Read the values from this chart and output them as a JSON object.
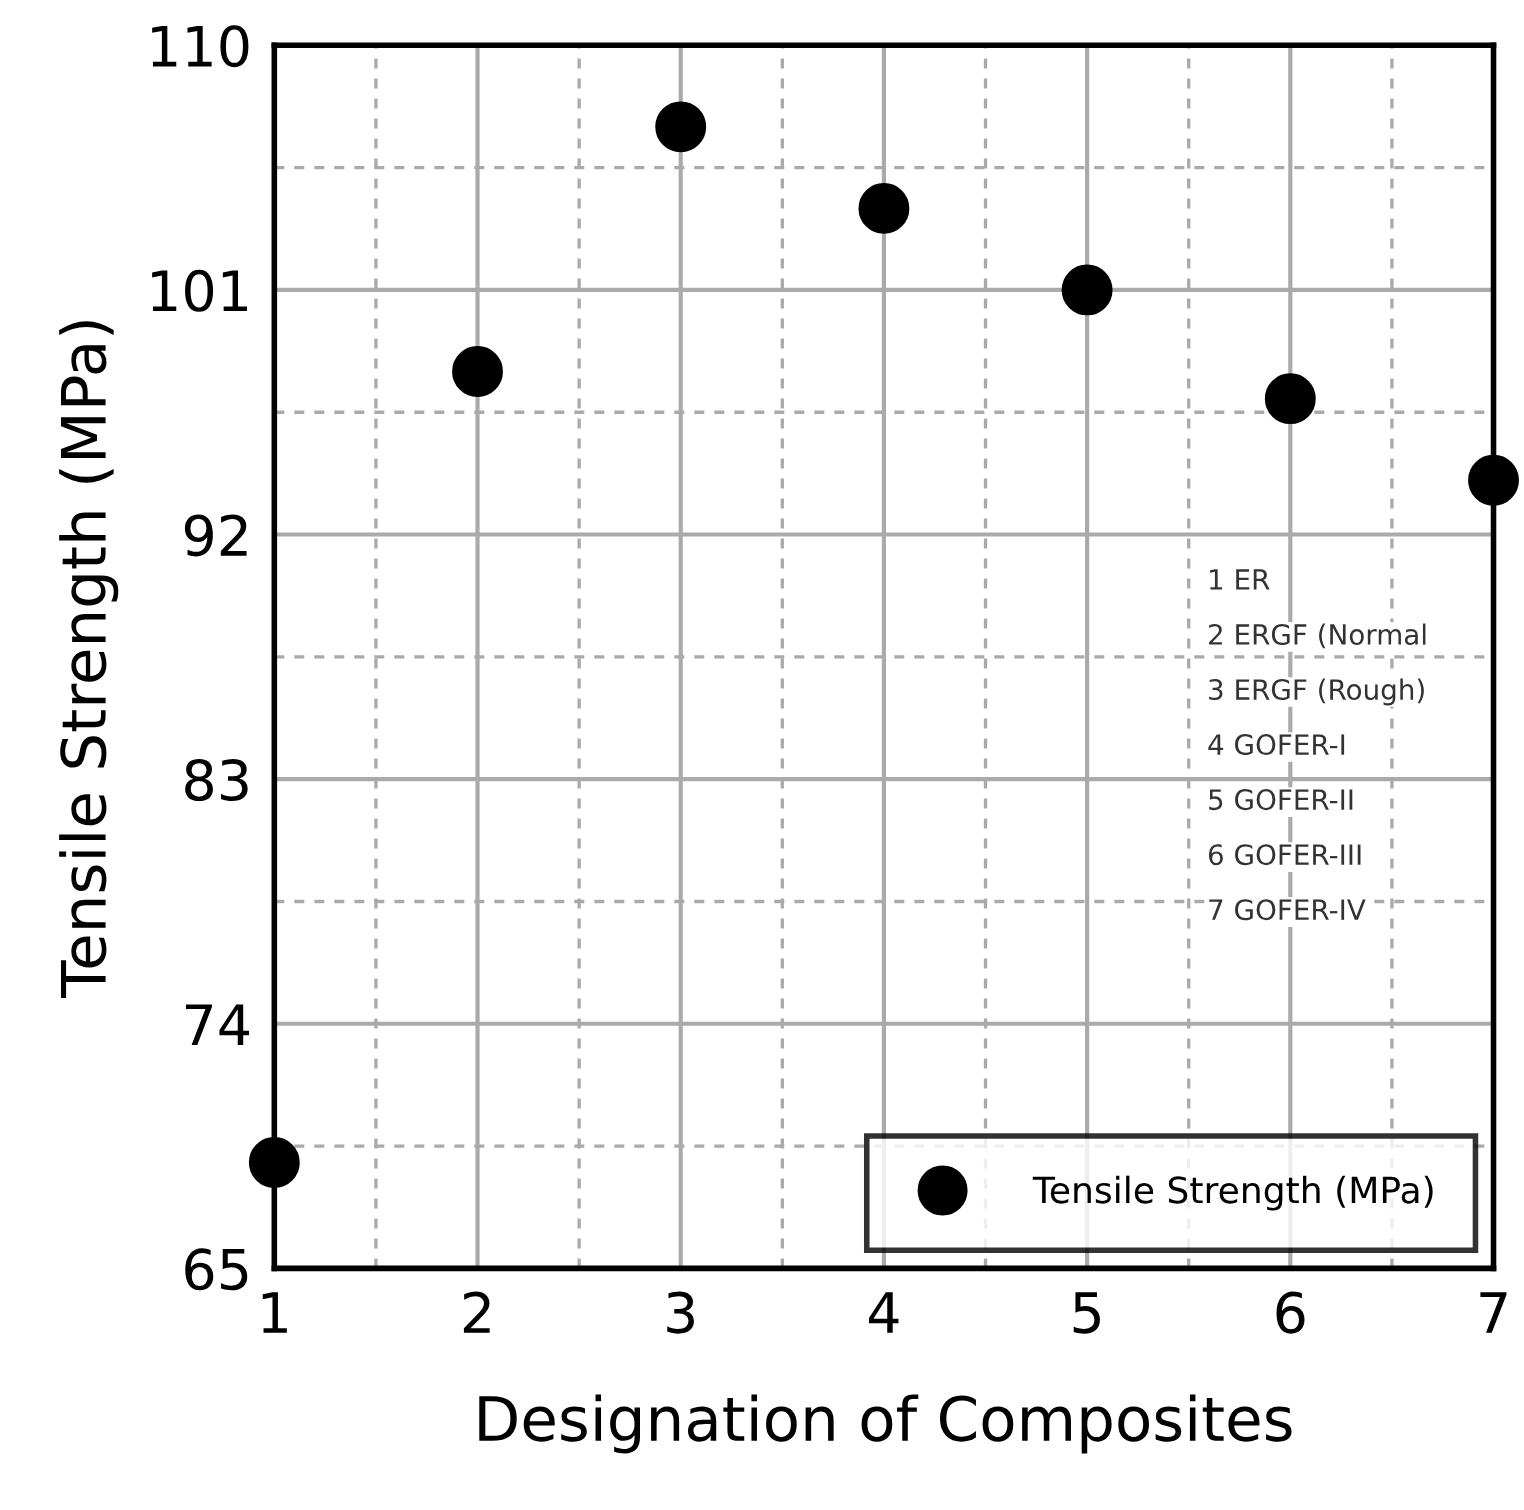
{
  "chart_data": {
    "type": "scatter",
    "xlabel": "Designation of Composites",
    "ylabel": "Tensile Strength (MPa)",
    "x": [
      1,
      2,
      3,
      4,
      5,
      6,
      7
    ],
    "series": [
      {
        "name": "Tensile Strength (MPa)",
        "color": "#000000",
        "values": [
          68.9,
          98.0,
          107.0,
          104.0,
          101.0,
          97.0,
          94.0
        ]
      }
    ],
    "xlim": [
      1,
      7
    ],
    "xticks": [
      1,
      2,
      3,
      4,
      5,
      6,
      7
    ],
    "ylim": [
      65,
      110
    ],
    "yticks": [
      65,
      74,
      83,
      92,
      101,
      110
    ],
    "grid": true,
    "legend": "bottom right",
    "marker": "circle",
    "annotations": [
      "1 ER",
      "2 ERGF (Normal",
      "3 ERGF (Rough)",
      "4 GOFER-I",
      "5 GOFER-II",
      "6 GOFER-III",
      "7 GOFER-IV"
    ]
  }
}
